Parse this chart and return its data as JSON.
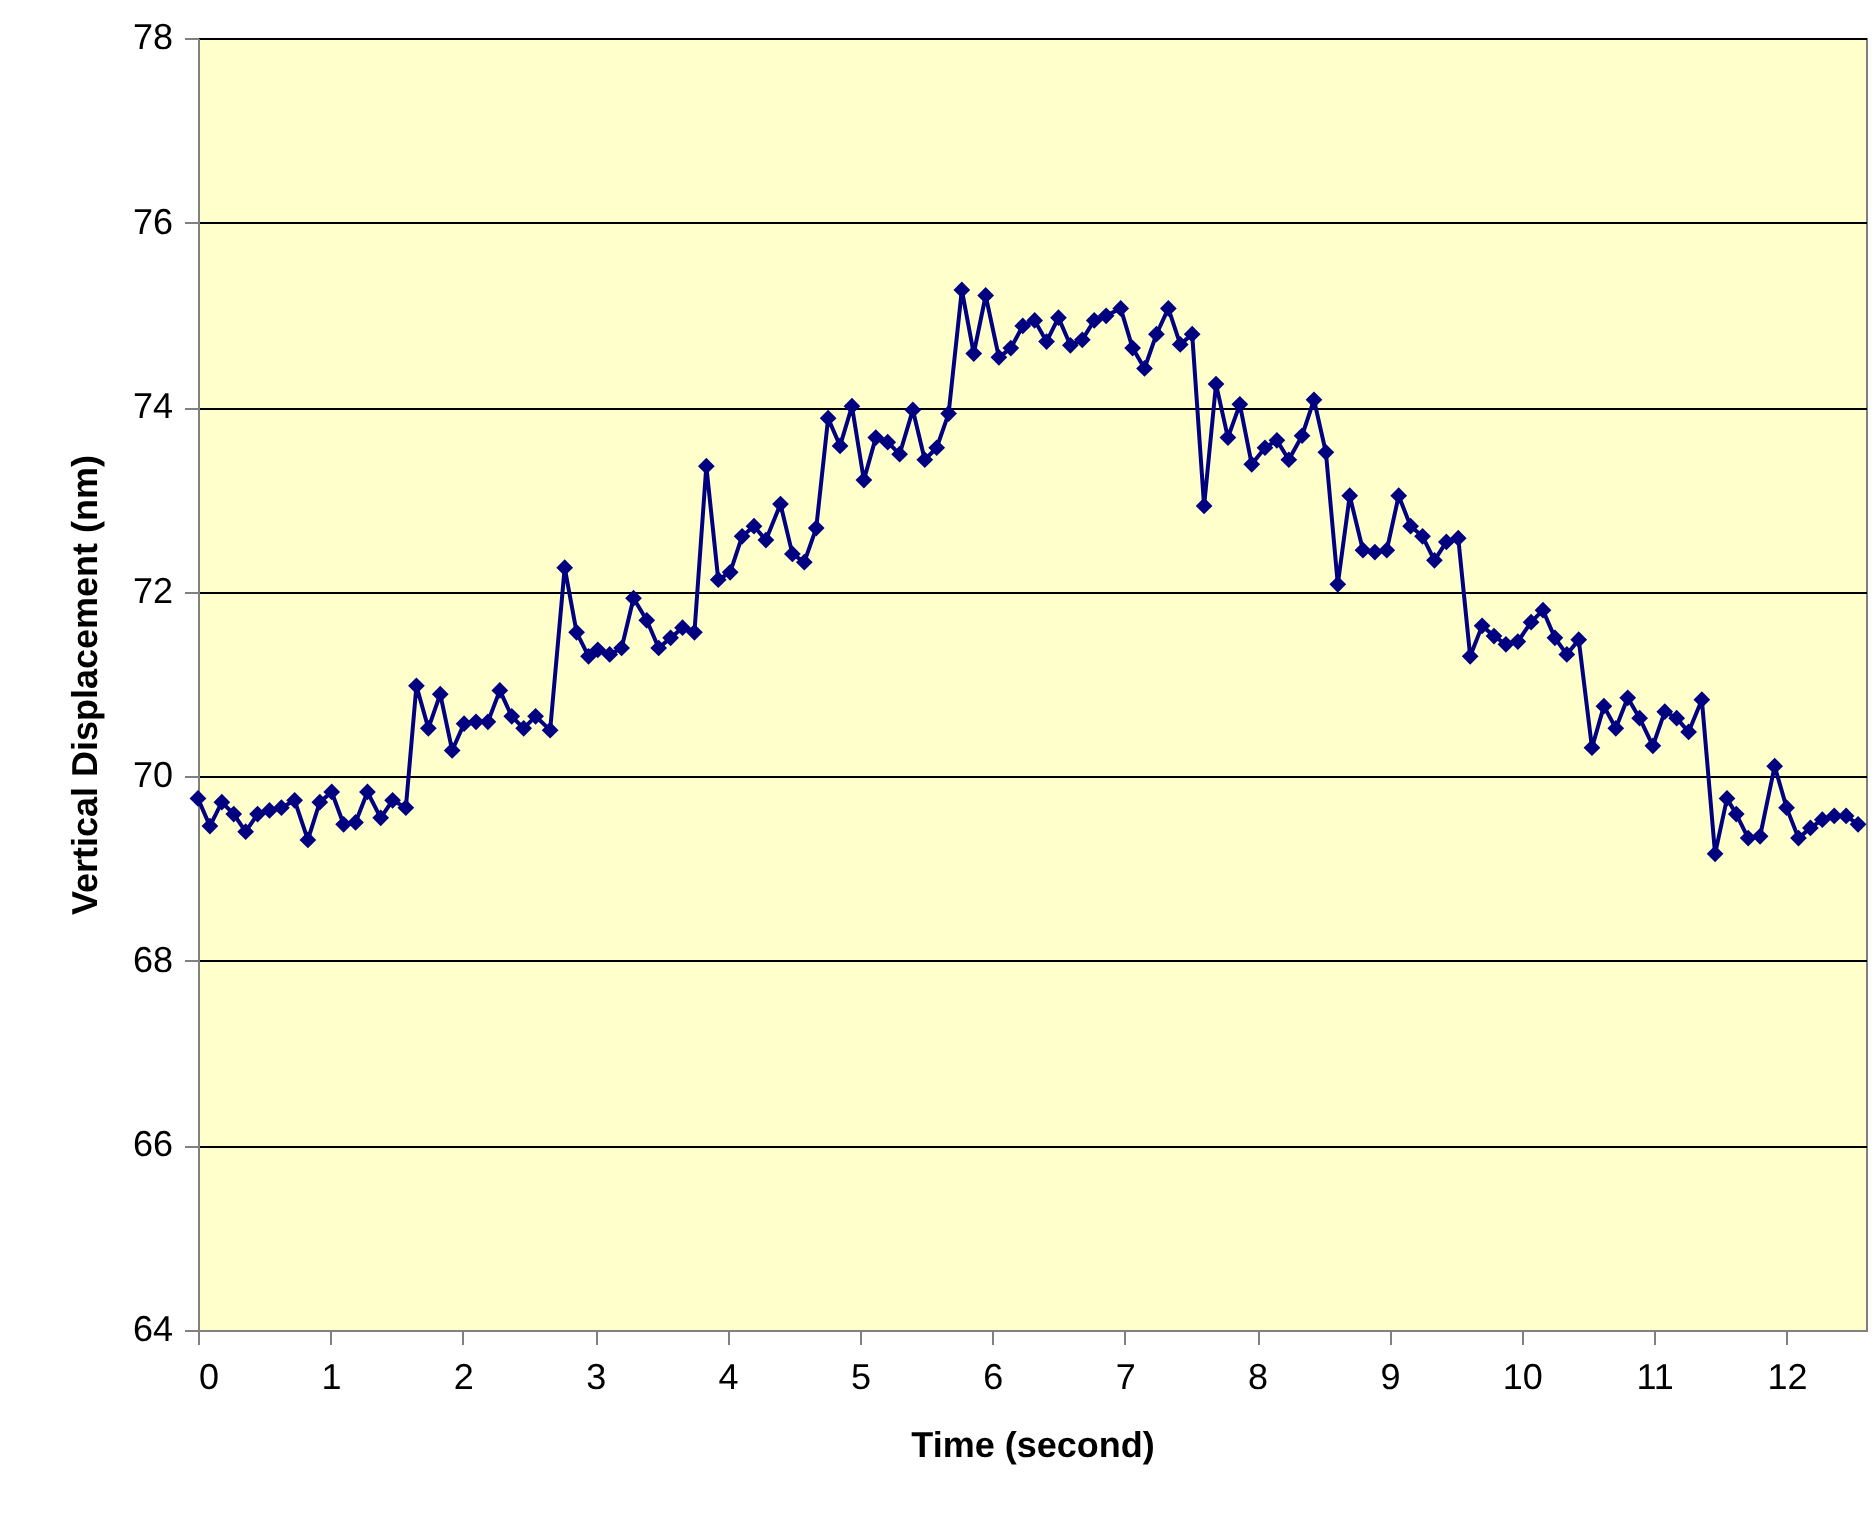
{
  "chart_data": {
    "type": "line",
    "xlabel": "Time (second)",
    "ylabel": "Vertical Displacement (nm)",
    "xlim": [
      0,
      12.6
    ],
    "xticks": [
      0,
      1,
      2,
      3,
      4,
      5,
      6,
      7,
      8,
      9,
      10,
      11,
      12
    ],
    "ylim": [
      64,
      78
    ],
    "yticks": [
      64,
      66,
      68,
      70,
      72,
      74,
      76,
      78
    ],
    "grid": "y",
    "marker": "diamond",
    "x": [
      0,
      0.09,
      0.18,
      0.27,
      0.36,
      0.45,
      0.54,
      0.63,
      0.73,
      0.83,
      0.92,
      1.01,
      1.1,
      1.19,
      1.28,
      1.38,
      1.47,
      1.57,
      1.65,
      1.74,
      1.83,
      1.92,
      2.01,
      2.1,
      2.19,
      2.28,
      2.37,
      2.46,
      2.55,
      2.66,
      2.77,
      2.86,
      2.95,
      3.02,
      3.11,
      3.2,
      3.29,
      3.39,
      3.48,
      3.57,
      3.66,
      3.75,
      3.84,
      3.93,
      4.02,
      4.11,
      4.2,
      4.29,
      4.4,
      4.49,
      4.58,
      4.67,
      4.76,
      4.85,
      4.94,
      5.03,
      5.12,
      5.21,
      5.3,
      5.4,
      5.49,
      5.58,
      5.67,
      5.77,
      5.86,
      5.95,
      6.05,
      6.14,
      6.23,
      6.32,
      6.41,
      6.5,
      6.59,
      6.68,
      6.77,
      6.86,
      6.97,
      7.06,
      7.15,
      7.24,
      7.33,
      7.42,
      7.51,
      7.6,
      7.69,
      7.78,
      7.87,
      7.96,
      8.06,
      8.15,
      8.24,
      8.34,
      8.43,
      8.52,
      8.61,
      8.7,
      8.8,
      8.89,
      8.98,
      9.07,
      9.16,
      9.25,
      9.34,
      9.43,
      9.52,
      9.61,
      9.7,
      9.79,
      9.88,
      9.97,
      10.07,
      10.16,
      10.25,
      10.34,
      10.43,
      10.53,
      10.62,
      10.71,
      10.8,
      10.89,
      10.99,
      11.08,
      11.17,
      11.26,
      11.36,
      11.46,
      11.55,
      11.62,
      11.71,
      11.8,
      11.91,
      12.0,
      12.09,
      12.18,
      12.27,
      12.36,
      12.45,
      12.54
    ],
    "series": [
      {
        "color": "#000080",
        "values": [
          69.76,
          69.46,
          69.72,
          69.59,
          69.4,
          69.59,
          69.63,
          69.66,
          69.74,
          69.31,
          69.72,
          69.83,
          69.48,
          69.5,
          69.83,
          69.55,
          69.74,
          69.66,
          70.98,
          70.52,
          70.89,
          70.28,
          70.57,
          70.59,
          70.59,
          70.93,
          70.65,
          70.52,
          70.65,
          70.5,
          72.26,
          71.56,
          71.3,
          71.37,
          71.32,
          71.39,
          71.93,
          71.69,
          71.39,
          71.5,
          71.61,
          71.56,
          73.36,
          72.13,
          72.21,
          72.6,
          72.71,
          72.56,
          72.95,
          72.41,
          72.32,
          72.69,
          73.88,
          73.58,
          74.01,
          73.21,
          73.67,
          73.62,
          73.49,
          73.97,
          73.43,
          73.56,
          73.93,
          75.27,
          74.58,
          75.21,
          74.54,
          74.64,
          74.88,
          74.94,
          74.71,
          74.97,
          74.67,
          74.73,
          74.94,
          74.99,
          75.07,
          74.64,
          74.42,
          74.79,
          75.07,
          74.68,
          74.79,
          72.93,
          74.25,
          73.67,
          74.03,
          73.38,
          73.56,
          73.64,
          73.43,
          73.69,
          74.08,
          73.51,
          72.08,
          73.04,
          72.45,
          72.43,
          72.45,
          73.04,
          72.71,
          72.6,
          72.34,
          72.54,
          72.58,
          71.3,
          71.63,
          71.52,
          71.43,
          71.46,
          71.67,
          71.8,
          71.5,
          71.32,
          71.48,
          70.31,
          70.76,
          70.52,
          70.85,
          70.63,
          70.33,
          70.7,
          70.63,
          70.48,
          70.83,
          69.16,
          69.76,
          69.59,
          69.33,
          69.35,
          70.11,
          69.66,
          69.33,
          69.44,
          69.53,
          69.57,
          69.57,
          69.48
        ]
      }
    ]
  }
}
